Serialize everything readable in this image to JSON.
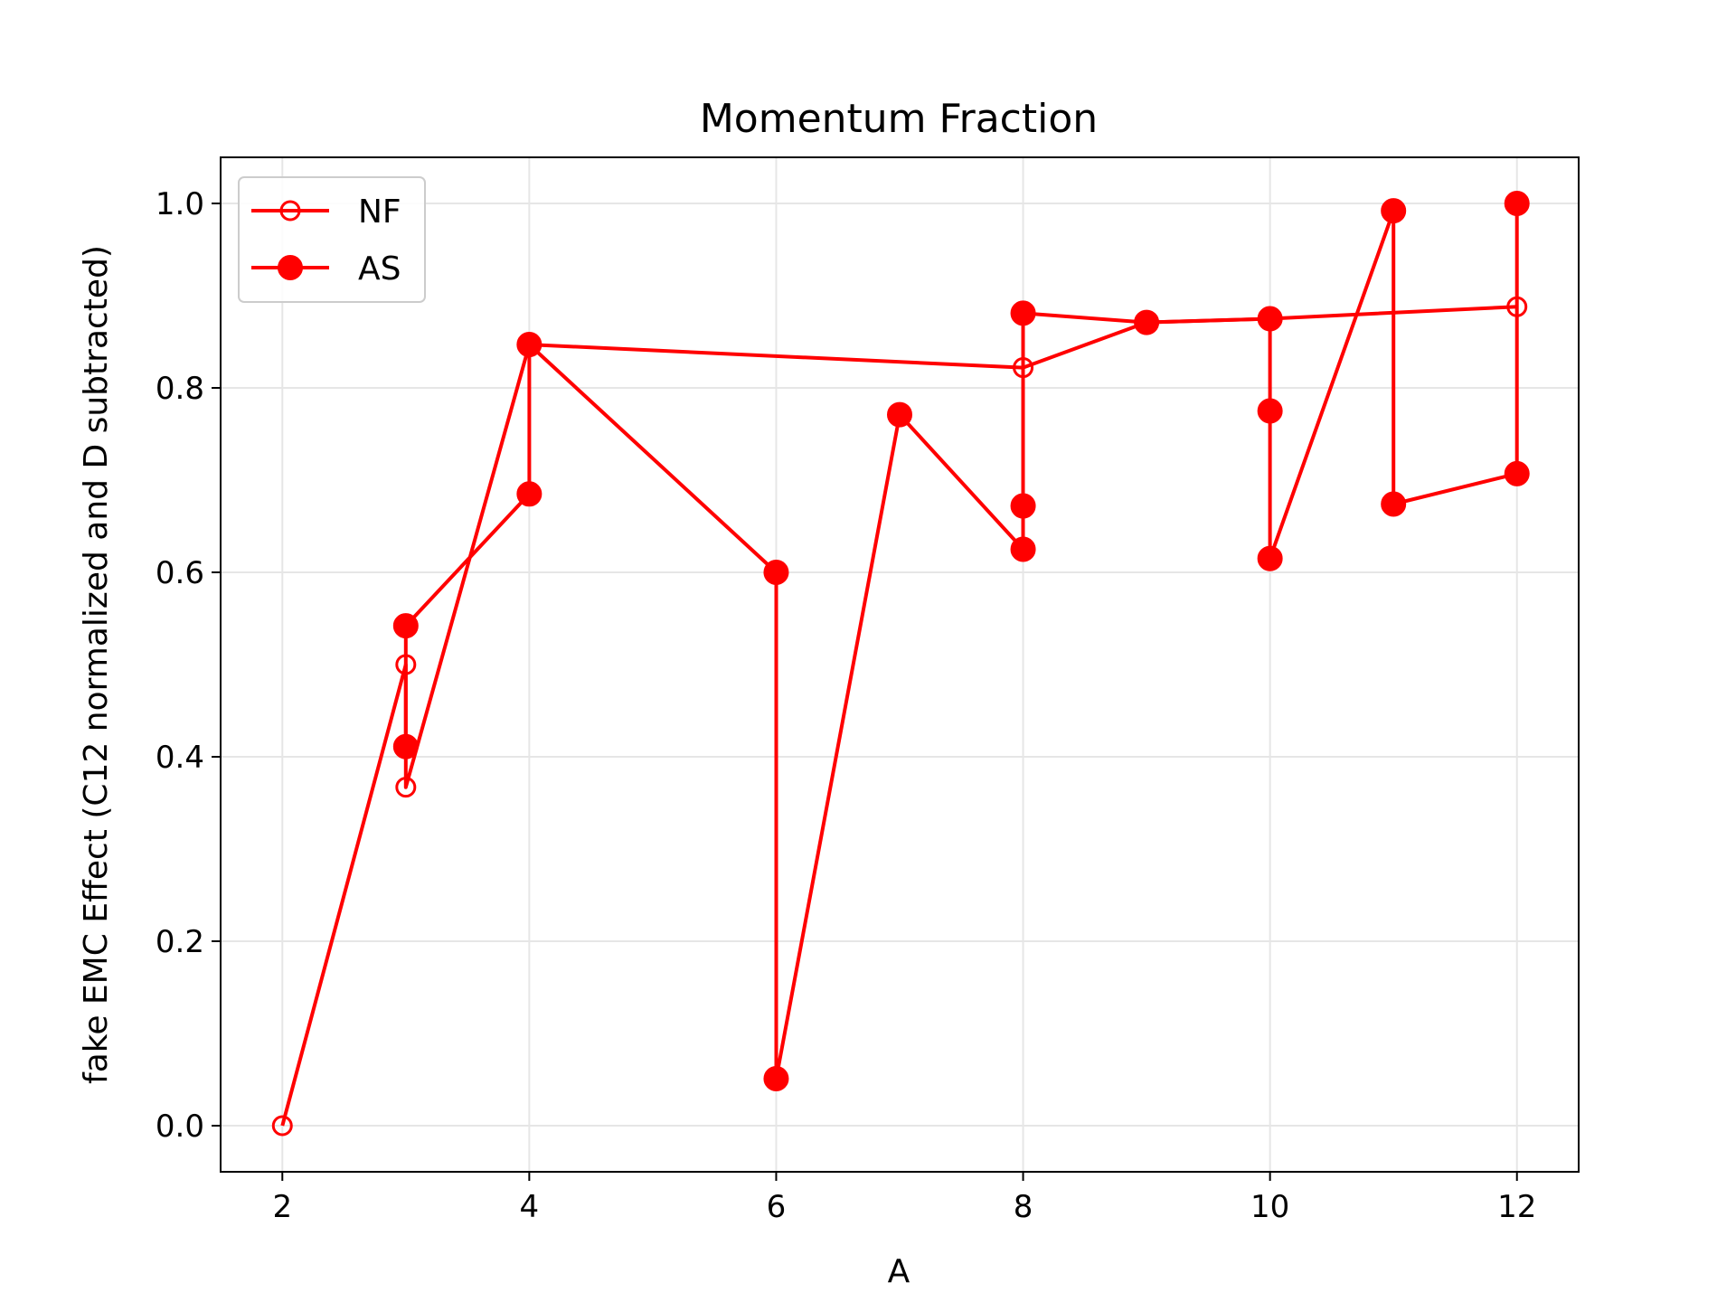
{
  "chart_data": {
    "type": "line",
    "title": "Momentum Fraction",
    "xlabel": "A",
    "ylabel": "fake EMC Effect (C12 normalized and D subtracted)",
    "xlim": [
      1.5,
      12.5
    ],
    "ylim": [
      -0.05,
      1.05
    ],
    "xticks": [
      2,
      4,
      6,
      8,
      10,
      12
    ],
    "yticks": [
      0.0,
      0.2,
      0.4,
      0.6,
      0.8,
      1.0
    ],
    "xtick_labels": [
      "2",
      "4",
      "6",
      "8",
      "10",
      "12"
    ],
    "ytick_labels": [
      "0.0",
      "0.2",
      "0.4",
      "0.6",
      "0.8",
      "1.0"
    ],
    "grid": true,
    "legend_position": "top-left",
    "color": "#ff0000",
    "series": [
      {
        "name": "NF",
        "marker": "open-circle",
        "x": [
          2,
          3,
          3,
          4,
          8,
          9,
          10,
          12
        ],
        "y": [
          0.0,
          0.5,
          0.367,
          0.847,
          0.822,
          0.871,
          0.875,
          0.888
        ]
      },
      {
        "name": "AS",
        "marker": "filled-circle",
        "x": [
          3,
          3,
          4,
          4,
          6,
          6,
          7,
          8,
          8,
          8,
          9,
          10,
          10,
          10,
          11,
          11,
          12,
          12
        ],
        "y": [
          0.411,
          0.542,
          0.685,
          0.847,
          0.6,
          0.051,
          0.771,
          0.625,
          0.672,
          0.881,
          0.871,
          0.875,
          0.775,
          0.615,
          0.992,
          0.674,
          0.707,
          1.0
        ]
      }
    ]
  }
}
